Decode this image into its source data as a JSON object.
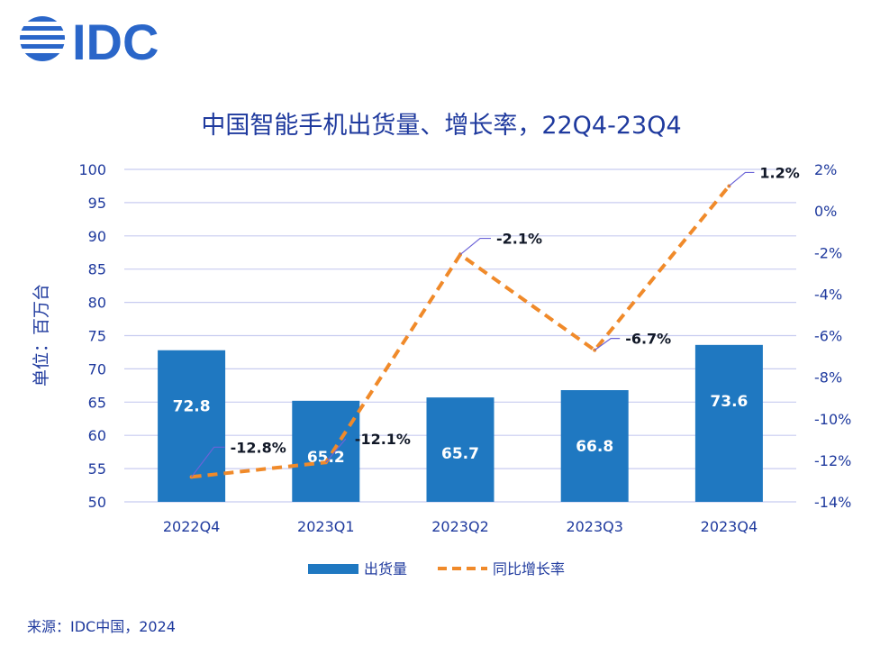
{
  "logo_text": "IDC",
  "colors": {
    "bar": "#1f78c1",
    "line": "#f08a2a",
    "text": "#1f3a9e",
    "grid": "#c8ccf0",
    "leader": "#6b63d8"
  },
  "chart_data": {
    "type": "bar+line",
    "title": "中国智能手机出货量、增长率，22Q4-23Q4",
    "ylabel": "单位：百万台",
    "categories": [
      "2022Q4",
      "2023Q1",
      "2023Q2",
      "2023Q3",
      "2023Q4"
    ],
    "bar_series": {
      "name": "出货量",
      "values": [
        72.8,
        65.2,
        65.7,
        66.8,
        73.6
      ]
    },
    "line_series": {
      "name": "同比增长率",
      "values": [
        -12.8,
        -12.1,
        -2.1,
        -6.7,
        1.2
      ],
      "unit": "%"
    },
    "bar_labels": [
      "72.8",
      "65.2",
      "65.7",
      "66.8",
      "73.6"
    ],
    "rate_labels": [
      "-12.8%",
      "-12.1%",
      "-2.1%",
      "-6.7%",
      "1.2%"
    ],
    "y_left": {
      "min": 50,
      "max": 100,
      "step": 5,
      "ticks": [
        "50",
        "55",
        "60",
        "65",
        "70",
        "75",
        "80",
        "85",
        "90",
        "95",
        "100"
      ]
    },
    "y_right": {
      "min": -14,
      "max": 2,
      "step": 2,
      "ticks": [
        "-14%",
        "-12%",
        "-10%",
        "-8%",
        "-6%",
        "-4%",
        "-2%",
        "0%",
        "2%"
      ]
    },
    "grid": true,
    "legend_position": "bottom"
  },
  "source": "来源：IDC中国，2024"
}
